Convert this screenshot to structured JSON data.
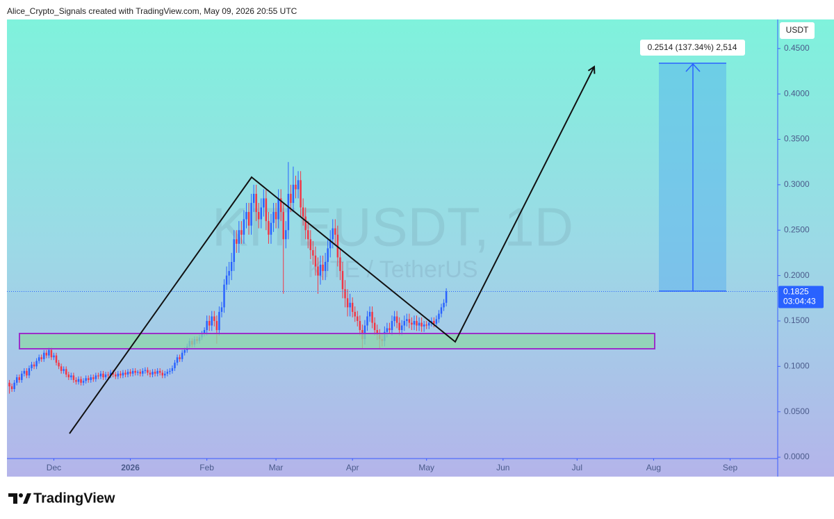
{
  "header": "Alice_Crypto_Signals created with TradingView.com, May 09, 2026 20:55 UTC",
  "brand": "TradingView",
  "chart_data": {
    "type": "candlestick",
    "watermark": "KITEUSDT, 1D",
    "watermark_subtitle": "KITE / TetherUS",
    "currency": "USDT",
    "start": "2025-11-13",
    "up_color": "#2962ff",
    "down_color": "#f23645",
    "open": [
      0.082,
      0.078,
      0.075,
      0.082,
      0.088,
      0.085,
      0.092,
      0.095,
      0.09,
      0.098,
      0.102,
      0.1,
      0.106,
      0.11,
      0.108,
      0.115,
      0.112,
      0.118,
      0.11,
      0.112,
      0.104,
      0.1,
      0.095,
      0.097,
      0.091,
      0.088,
      0.09,
      0.085,
      0.083,
      0.086,
      0.082,
      0.084,
      0.087,
      0.085,
      0.088,
      0.086,
      0.09,
      0.089,
      0.092,
      0.088,
      0.091,
      0.09,
      0.093,
      0.091,
      0.089,
      0.092,
      0.09,
      0.093,
      0.091,
      0.094,
      0.092,
      0.095,
      0.093,
      0.094,
      0.092,
      0.095,
      0.096,
      0.093,
      0.091,
      0.094,
      0.092,
      0.095,
      0.093,
      0.09,
      0.092,
      0.094,
      0.095,
      0.098,
      0.104,
      0.11,
      0.108,
      0.115,
      0.118,
      0.122,
      0.128,
      0.124,
      0.13,
      0.128,
      0.132,
      0.136,
      0.14,
      0.15,
      0.145,
      0.155,
      0.15,
      0.14,
      0.16,
      0.165,
      0.19,
      0.2,
      0.205,
      0.215,
      0.24,
      0.235,
      0.25,
      0.245,
      0.262,
      0.27,
      0.255,
      0.28,
      0.29,
      0.27,
      0.262,
      0.275,
      0.285,
      0.26,
      0.245,
      0.258,
      0.27,
      0.262,
      0.285,
      0.27,
      0.24,
      0.25,
      0.29,
      0.28,
      0.3,
      0.295,
      0.305,
      0.275,
      0.265,
      0.25,
      0.24,
      0.228,
      0.222,
      0.21,
      0.2,
      0.212,
      0.205,
      0.215,
      0.23,
      0.24,
      0.252,
      0.245,
      0.22,
      0.205,
      0.185,
      0.175,
      0.165,
      0.17,
      0.16,
      0.155,
      0.15,
      0.14,
      0.13,
      0.145,
      0.155,
      0.16,
      0.148,
      0.14,
      0.135,
      0.13,
      0.128,
      0.138,
      0.142,
      0.14,
      0.15,
      0.155,
      0.148,
      0.14,
      0.145,
      0.15,
      0.152,
      0.148,
      0.146,
      0.15,
      0.145,
      0.148,
      0.144,
      0.146,
      0.145,
      0.148,
      0.15,
      0.147,
      0.152,
      0.158,
      0.165,
      0.17
    ],
    "high": [
      0.085,
      0.081,
      0.085,
      0.091,
      0.091,
      0.095,
      0.098,
      0.098,
      0.101,
      0.105,
      0.105,
      0.109,
      0.113,
      0.113,
      0.118,
      0.118,
      0.121,
      0.121,
      0.115,
      0.115,
      0.107,
      0.103,
      0.1,
      0.1,
      0.094,
      0.093,
      0.093,
      0.088,
      0.089,
      0.089,
      0.087,
      0.09,
      0.09,
      0.091,
      0.091,
      0.093,
      0.093,
      0.095,
      0.095,
      0.094,
      0.094,
      0.096,
      0.096,
      0.094,
      0.095,
      0.095,
      0.096,
      0.096,
      0.097,
      0.097,
      0.098,
      0.098,
      0.096,
      0.097,
      0.098,
      0.099,
      0.099,
      0.096,
      0.097,
      0.097,
      0.098,
      0.098,
      0.096,
      0.095,
      0.097,
      0.098,
      0.101,
      0.107,
      0.113,
      0.113,
      0.118,
      0.121,
      0.125,
      0.131,
      0.131,
      0.133,
      0.133,
      0.135,
      0.139,
      0.143,
      0.156,
      0.156,
      0.161,
      0.161,
      0.156,
      0.166,
      0.171,
      0.196,
      0.21,
      0.215,
      0.225,
      0.25,
      0.25,
      0.26,
      0.26,
      0.272,
      0.28,
      0.28,
      0.29,
      0.3,
      0.3,
      0.28,
      0.285,
      0.295,
      0.295,
      0.27,
      0.268,
      0.28,
      0.28,
      0.295,
      0.295,
      0.28,
      0.26,
      0.325,
      0.3,
      0.32,
      0.31,
      0.315,
      0.315,
      0.285,
      0.275,
      0.26,
      0.25,
      0.238,
      0.232,
      0.22,
      0.222,
      0.222,
      0.225,
      0.24,
      0.25,
      0.262,
      0.262,
      0.255,
      0.23,
      0.215,
      0.195,
      0.185,
      0.18,
      0.176,
      0.166,
      0.161,
      0.156,
      0.146,
      0.151,
      0.161,
      0.166,
      0.166,
      0.154,
      0.146,
      0.141,
      0.136,
      0.144,
      0.148,
      0.148,
      0.156,
      0.161,
      0.161,
      0.154,
      0.151,
      0.156,
      0.158,
      0.158,
      0.154,
      0.156,
      0.156,
      0.154,
      0.154,
      0.15,
      0.15,
      0.152,
      0.154,
      0.154,
      0.156,
      0.162,
      0.169,
      0.174,
      0.186
    ],
    "low": [
      0.07,
      0.072,
      0.072,
      0.079,
      0.082,
      0.082,
      0.089,
      0.087,
      0.087,
      0.095,
      0.097,
      0.097,
      0.103,
      0.105,
      0.105,
      0.109,
      0.109,
      0.107,
      0.107,
      0.101,
      0.097,
      0.092,
      0.092,
      0.088,
      0.085,
      0.085,
      0.082,
      0.08,
      0.08,
      0.079,
      0.079,
      0.081,
      0.082,
      0.082,
      0.083,
      0.083,
      0.086,
      0.086,
      0.085,
      0.085,
      0.087,
      0.087,
      0.088,
      0.086,
      0.086,
      0.087,
      0.087,
      0.088,
      0.088,
      0.089,
      0.089,
      0.09,
      0.09,
      0.089,
      0.089,
      0.092,
      0.09,
      0.088,
      0.088,
      0.089,
      0.089,
      0.09,
      0.087,
      0.087,
      0.089,
      0.091,
      0.092,
      0.095,
      0.101,
      0.105,
      0.105,
      0.112,
      0.115,
      0.119,
      0.121,
      0.121,
      0.125,
      0.125,
      0.129,
      0.133,
      0.134,
      0.139,
      0.139,
      0.144,
      0.125,
      0.134,
      0.154,
      0.159,
      0.184,
      0.19,
      0.195,
      0.205,
      0.225,
      0.225,
      0.235,
      0.235,
      0.252,
      0.245,
      0.245,
      0.27,
      0.26,
      0.252,
      0.252,
      0.265,
      0.25,
      0.235,
      0.235,
      0.248,
      0.252,
      0.252,
      0.26,
      0.18,
      0.23,
      0.24,
      0.27,
      0.27,
      0.285,
      0.285,
      0.265,
      0.255,
      0.24,
      0.23,
      0.218,
      0.212,
      0.2,
      0.18,
      0.19,
      0.195,
      0.195,
      0.205,
      0.22,
      0.23,
      0.235,
      0.21,
      0.195,
      0.175,
      0.165,
      0.155,
      0.155,
      0.154,
      0.149,
      0.144,
      0.134,
      0.12,
      0.124,
      0.139,
      0.149,
      0.142,
      0.134,
      0.129,
      0.12,
      0.122,
      0.122,
      0.132,
      0.136,
      0.134,
      0.144,
      0.142,
      0.134,
      0.134,
      0.139,
      0.144,
      0.142,
      0.14,
      0.14,
      0.139,
      0.139,
      0.138,
      0.138,
      0.141,
      0.141,
      0.144,
      0.143,
      0.143,
      0.148,
      0.154,
      0.161,
      0.166
    ],
    "close": [
      0.078,
      0.075,
      0.082,
      0.088,
      0.085,
      0.092,
      0.095,
      0.09,
      0.098,
      0.102,
      0.1,
      0.106,
      0.11,
      0.108,
      0.115,
      0.112,
      0.118,
      0.11,
      0.112,
      0.104,
      0.1,
      0.095,
      0.097,
      0.091,
      0.088,
      0.09,
      0.085,
      0.083,
      0.086,
      0.082,
      0.084,
      0.087,
      0.085,
      0.088,
      0.086,
      0.09,
      0.089,
      0.092,
      0.088,
      0.091,
      0.09,
      0.093,
      0.091,
      0.089,
      0.092,
      0.09,
      0.093,
      0.091,
      0.094,
      0.092,
      0.095,
      0.093,
      0.094,
      0.092,
      0.095,
      0.096,
      0.093,
      0.091,
      0.094,
      0.092,
      0.095,
      0.093,
      0.09,
      0.092,
      0.094,
      0.095,
      0.098,
      0.104,
      0.11,
      0.108,
      0.115,
      0.118,
      0.122,
      0.128,
      0.124,
      0.13,
      0.128,
      0.132,
      0.136,
      0.14,
      0.15,
      0.145,
      0.155,
      0.15,
      0.14,
      0.16,
      0.165,
      0.19,
      0.2,
      0.205,
      0.215,
      0.24,
      0.235,
      0.25,
      0.245,
      0.262,
      0.27,
      0.255,
      0.28,
      0.29,
      0.27,
      0.262,
      0.275,
      0.285,
      0.26,
      0.245,
      0.258,
      0.27,
      0.262,
      0.285,
      0.27,
      0.24,
      0.25,
      0.29,
      0.28,
      0.3,
      0.295,
      0.305,
      0.275,
      0.265,
      0.25,
      0.24,
      0.228,
      0.222,
      0.21,
      0.2,
      0.212,
      0.205,
      0.215,
      0.23,
      0.24,
      0.252,
      0.245,
      0.22,
      0.205,
      0.185,
      0.175,
      0.165,
      0.17,
      0.16,
      0.155,
      0.15,
      0.14,
      0.13,
      0.145,
      0.155,
      0.16,
      0.148,
      0.14,
      0.135,
      0.13,
      0.128,
      0.138,
      0.142,
      0.14,
      0.15,
      0.155,
      0.148,
      0.14,
      0.145,
      0.15,
      0.152,
      0.148,
      0.146,
      0.15,
      0.145,
      0.148,
      0.144,
      0.146,
      0.145,
      0.148,
      0.15,
      0.147,
      0.152,
      0.158,
      0.165,
      0.17,
      0.1825
    ],
    "countdown": "03:04:43",
    "measure_label": "0.2514 (137.34%) 2,514",
    "ylim": [
      -0.0015,
      0.482
    ],
    "yticks": [
      {
        "value": 0,
        "label": "0.0000"
      },
      {
        "value": 0.05,
        "label": "0.0500"
      },
      {
        "value": 0.1,
        "label": "0.1000"
      },
      {
        "value": 0.15,
        "label": "0.1500"
      },
      {
        "value": 0.2,
        "label": "0.2000"
      },
      {
        "value": 0.25,
        "label": "0.2500"
      },
      {
        "value": 0.3,
        "label": "0.3000"
      },
      {
        "value": 0.35,
        "label": "0.3500"
      },
      {
        "value": 0.4,
        "label": "0.4000"
      },
      {
        "value": 0.45,
        "label": "0.4500"
      }
    ],
    "xlim": [
      "2025-11-12",
      "2026-09-20"
    ],
    "xticks": [
      {
        "value": "2025-12-01",
        "label": "Dec"
      },
      {
        "value": "2026-01-01",
        "label": "2026"
      },
      {
        "value": "2026-02-01",
        "label": "Feb"
      },
      {
        "value": "2026-03-01",
        "label": "Mar"
      },
      {
        "value": "2026-04-01",
        "label": "Apr"
      },
      {
        "value": "2026-05-01",
        "label": "May"
      },
      {
        "value": "2026-06-01",
        "label": "Jun"
      },
      {
        "value": "2026-07-01",
        "label": "Jul"
      },
      {
        "value": "2026-08-01",
        "label": "Aug"
      },
      {
        "value": "2026-09-01",
        "label": "Sep"
      }
    ],
    "grid": false
  }
}
